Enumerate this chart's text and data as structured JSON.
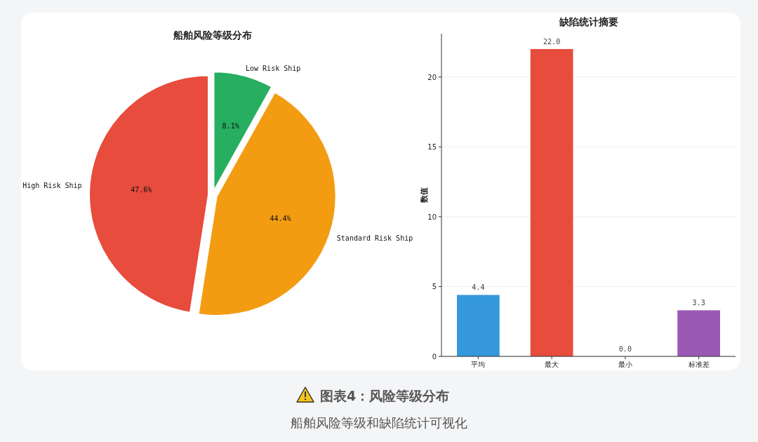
{
  "chart_data": [
    {
      "type": "pie",
      "title": "船舶风险等级分布",
      "categories": [
        "Low Risk Ship",
        "Standard Risk Ship",
        "High Risk Ship"
      ],
      "values": [
        8.1,
        44.4,
        47.6
      ],
      "colors": [
        "#27ae60",
        "#f39c12",
        "#e74c3c"
      ],
      "value_labels": [
        "8.1%",
        "44.4%",
        "47.6%"
      ],
      "annotations": [
        "图表4：风险等级分布",
        "船舶风险等级和缺陷统计可视化"
      ]
    },
    {
      "type": "bar",
      "title": "缺陷统计摘要",
      "ylabel": "数值",
      "categories": [
        "平均",
        "最大",
        "最小",
        "标准差"
      ],
      "values": [
        4.4,
        22.0,
        0.0,
        3.3
      ],
      "colors": [
        "#3498db",
        "#e74c3c",
        "#2ecc71",
        "#9b59b6"
      ],
      "value_labels": [
        "4.4",
        "22.0",
        "0.0",
        "3.3"
      ],
      "ylim": [
        0,
        23.1
      ],
      "yticks": [
        0,
        5,
        10,
        15,
        20
      ],
      "grid": "y"
    }
  ]
}
